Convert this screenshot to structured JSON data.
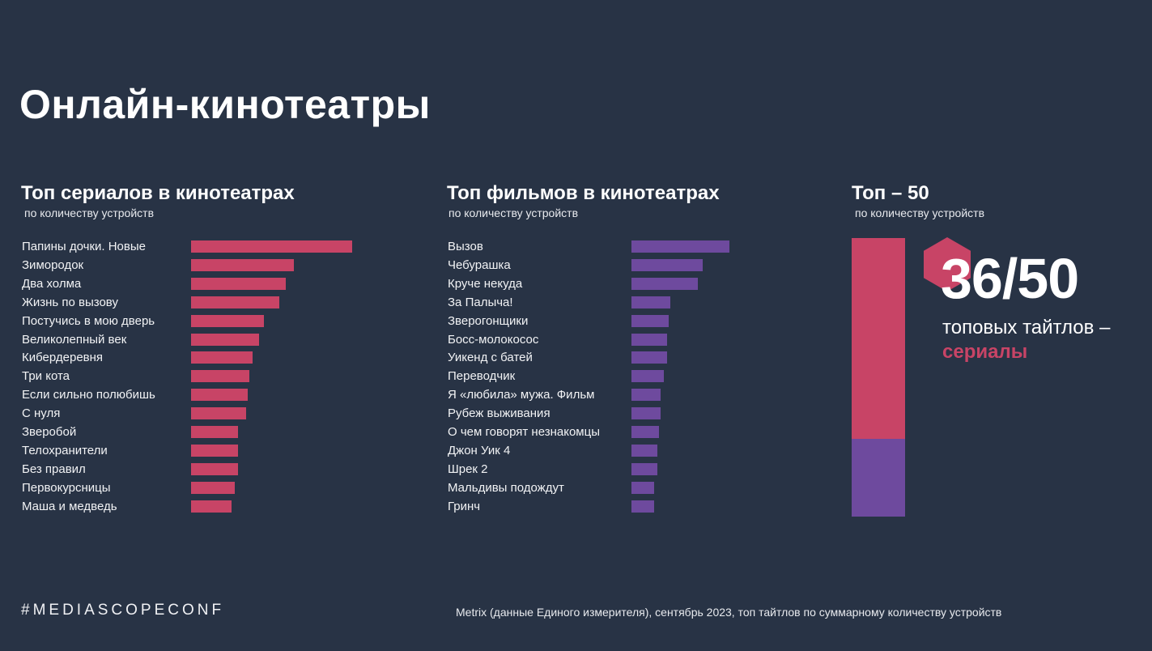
{
  "page": {
    "title": "Онлайн-кинотеатры",
    "hashtag": "#MEDIASCOPECONF",
    "source": "Metrix (данные Единого измерителя), сентябрь 2023, топ тайтлов по суммарному количеству устройств"
  },
  "colors": {
    "background": "#283345",
    "series": "#c84466",
    "films": "#6e4a9e"
  },
  "chart_data": [
    {
      "type": "bar",
      "orientation": "horizontal",
      "title": "Топ сериалов в кинотеатрах",
      "subtitle": "по количеству устройств",
      "xlabel": "",
      "ylabel": "",
      "note": "values are relative bar lengths (top title = 100)",
      "categories": [
        "Папины дочки. Новые",
        "Зимородок",
        "Два холма",
        "Жизнь по вызову",
        "Постучись в мою дверь",
        "Великолепный век",
        "Кибердеревня",
        "Три кота",
        "Если сильно полюбишь",
        "С нуля",
        "Зверобой",
        "Телохранители",
        "Без правил",
        "Первокурсницы",
        "Маша и медведь"
      ],
      "values": [
        100,
        64,
        59,
        55,
        45,
        42,
        38,
        36,
        35,
        34,
        29,
        29,
        29,
        27,
        25
      ],
      "xlim": [
        0,
        100
      ]
    },
    {
      "type": "bar",
      "orientation": "horizontal",
      "title": "Топ фильмов в кинотеатрах",
      "subtitle": "по количеству устройств",
      "xlabel": "",
      "ylabel": "",
      "note": "values are relative bar lengths on the same scale as series chart",
      "categories": [
        "Вызов",
        "Чебурашка",
        "Круче некуда",
        "За Палыча!",
        "Зверогонщики",
        "Босс-молокосос",
        "Уикенд с батей",
        "Переводчик",
        "Я «любила» мужа. Фильм",
        "Рубеж выживания",
        "О чем говорят незнакомцы",
        "Джон Уик 4",
        "Шрек 2",
        "Мальдивы подождут",
        "Гринч"
      ],
      "values": [
        61,
        44,
        41,
        24,
        23,
        22,
        22,
        20,
        18,
        18,
        17,
        16,
        16,
        14,
        14
      ],
      "xlim": [
        0,
        100
      ]
    },
    {
      "type": "bar",
      "orientation": "vertical-stacked",
      "title": "Топ – 50",
      "subtitle": "по количеству устройств",
      "series": [
        {
          "name": "сериалы",
          "values": [
            36
          ]
        },
        {
          "name": "фильмы",
          "values": [
            14
          ]
        }
      ],
      "total": 50,
      "headline": "36/50",
      "caption": "топовых тайтлов –",
      "caption_highlight": "сериалы"
    }
  ]
}
